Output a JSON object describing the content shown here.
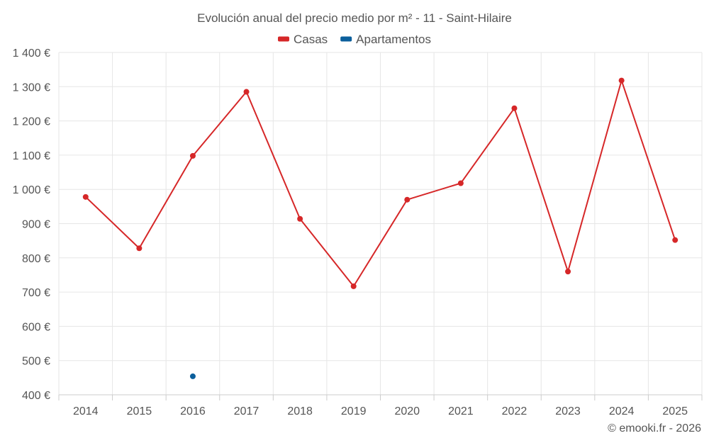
{
  "chart_data": {
    "type": "line",
    "title": "Evolución anual del precio medio por m² - 11 - Saint-Hilaire",
    "categories": [
      "2014",
      "2015",
      "2016",
      "2017",
      "2018",
      "2019",
      "2020",
      "2021",
      "2022",
      "2023",
      "2024",
      "2025"
    ],
    "series": [
      {
        "name": "Casas",
        "color": "#d62728",
        "values": [
          978,
          828,
          1098,
          1285,
          914,
          717,
          970,
          1018,
          1237,
          760,
          1318,
          852
        ]
      },
      {
        "name": "Apartamentos",
        "color": "#0b5f9c",
        "values": [
          null,
          null,
          454,
          null,
          null,
          null,
          null,
          null,
          null,
          null,
          null,
          null
        ]
      }
    ],
    "ylim": [
      400,
      1400
    ],
    "yticks": [
      400,
      500,
      600,
      700,
      800,
      900,
      1000,
      1100,
      1200,
      1300,
      1400
    ],
    "ytick_labels": [
      "400 €",
      "500 €",
      "600 €",
      "700 €",
      "800 €",
      "900 €",
      "1 000 €",
      "1 100 €",
      "1 200 €",
      "1 300 €",
      "1 400 €"
    ],
    "legend_position": "top-center",
    "grid": true
  },
  "credit": "© emooki.fr - 2026"
}
